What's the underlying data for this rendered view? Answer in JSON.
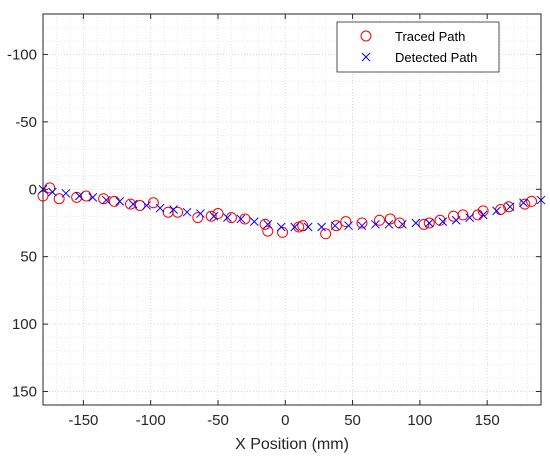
{
  "chart_data": {
    "type": "scatter",
    "xlabel": "X Position (mm)",
    "ylabel": "",
    "xlim": [
      -180,
      190
    ],
    "ylim": [
      -130,
      160
    ],
    "y_reversed": true,
    "xticks": [
      -150,
      -100,
      -50,
      0,
      50,
      100,
      150
    ],
    "yticks": [
      -100,
      -50,
      0,
      50,
      100,
      150
    ],
    "minor_grid": true,
    "grid_style": "dotted",
    "legend_position": "top-right",
    "series": [
      {
        "name": "Traced Path",
        "marker": "circle",
        "color": "#ff0000",
        "x": [
          -180,
          -175,
          -168,
          -155,
          -148,
          -135,
          -127,
          -115,
          -108,
          -98,
          -87,
          -80,
          -65,
          -55,
          -50,
          -40,
          -30,
          -15,
          -13,
          -2,
          10,
          13,
          30,
          38,
          45,
          57,
          70,
          78,
          85,
          103,
          107,
          115,
          125,
          132,
          143,
          147,
          160,
          166,
          178,
          183
        ],
        "y": [
          5,
          -1,
          7,
          6,
          5,
          7,
          9,
          11,
          12,
          10,
          17,
          17,
          21,
          20,
          18,
          21,
          22,
          26,
          31,
          32,
          28,
          27,
          33,
          27,
          24,
          25,
          23,
          22,
          25,
          26,
          25,
          23,
          20,
          19,
          19,
          16,
          15,
          13,
          11,
          9
        ]
      },
      {
        "name": "Detected Path",
        "marker": "x",
        "color": "#0000ff",
        "x": [
          -180,
          -173,
          -163,
          -153,
          -143,
          -133,
          -123,
          -113,
          -103,
          -93,
          -83,
          -73,
          -63,
          -53,
          -43,
          -33,
          -23,
          -13,
          -3,
          7,
          17,
          27,
          37,
          47,
          57,
          67,
          77,
          87,
          97,
          107,
          117,
          127,
          137,
          147,
          157,
          167,
          177,
          190
        ],
        "y": [
          0,
          2,
          3,
          5,
          6,
          8,
          9,
          11,
          12,
          14,
          15,
          17,
          18,
          20,
          21,
          22,
          24,
          26,
          28,
          28,
          28,
          28,
          27,
          27,
          27,
          26,
          26,
          26,
          25,
          25,
          24,
          23,
          21,
          19,
          16,
          13,
          10,
          8
        ]
      }
    ]
  }
}
